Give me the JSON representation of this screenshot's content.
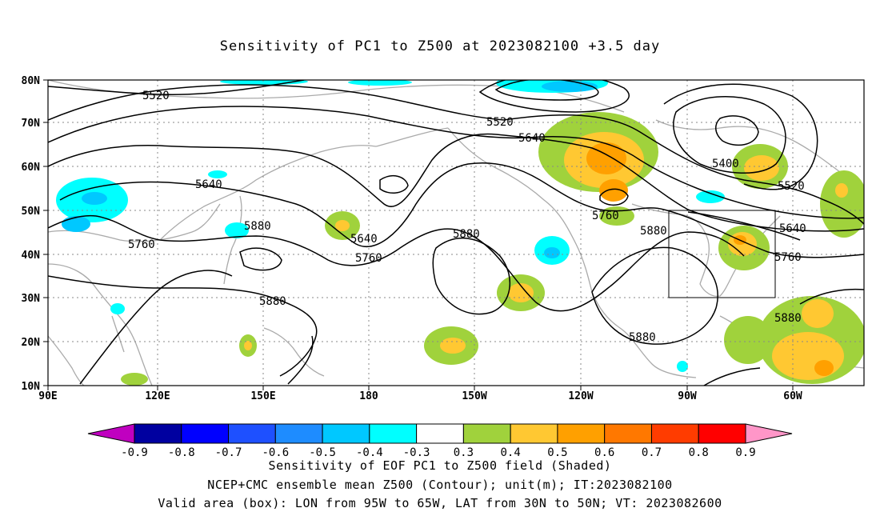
{
  "title": "Sensitivity of PC1 to Z500 at 2023082100 +3.5 day",
  "captions": [
    "Sensitivity of EOF PC1 to Z500 field (Shaded)",
    "NCEP+CMC ensemble mean Z500 (Contour); unit(m); IT:2023082100",
    "Valid area (box): LON from 95W to 65W, LAT from 30N to 50N; VT: 2023082600"
  ],
  "chart_data": {
    "type": "heatmap",
    "map": {
      "lon_range": [
        "90E",
        "50W"
      ],
      "lat_range": [
        10,
        80
      ],
      "x_ticks": [
        "90E",
        "120E",
        "150E",
        "180",
        "150W",
        "120W",
        "90W",
        "60W"
      ],
      "y_ticks": [
        "10N",
        "20N",
        "30N",
        "40N",
        "50N",
        "60N",
        "70N",
        "80N"
      ],
      "grid": "dotted",
      "coastlines": true
    },
    "contour_field": "NCEP+CMC ensemble mean Z500",
    "contour_unit": "m",
    "contour_labels": [
      "5520",
      "5520",
      "5640",
      "5400",
      "5520",
      "5640",
      "5760",
      "5880",
      "5640",
      "5760",
      "5880",
      "5760",
      "5880",
      "5640",
      "5760",
      "5880",
      "5880",
      "5880"
    ],
    "valid_box": {
      "lon": [
        "95W",
        "65W"
      ],
      "lat": [
        "30N",
        "50N"
      ]
    },
    "colorbar": {
      "labels": [
        "-0.9",
        "-0.8",
        "-0.7",
        "-0.6",
        "-0.5",
        "-0.4",
        "-0.3",
        "0.3",
        "0.4",
        "0.5",
        "0.6",
        "0.7",
        "0.8",
        "0.9"
      ],
      "colors": [
        "#c000c0",
        "#0000a0",
        "#0000ff",
        "#1e50ff",
        "#1e8cff",
        "#00c8ff",
        "#00ffff",
        "#ffffff",
        "#a0d23c",
        "#ffc832",
        "#ffa000",
        "#ff7800",
        "#ff3c00",
        "#ff0000",
        "#ff96c8"
      ]
    }
  }
}
